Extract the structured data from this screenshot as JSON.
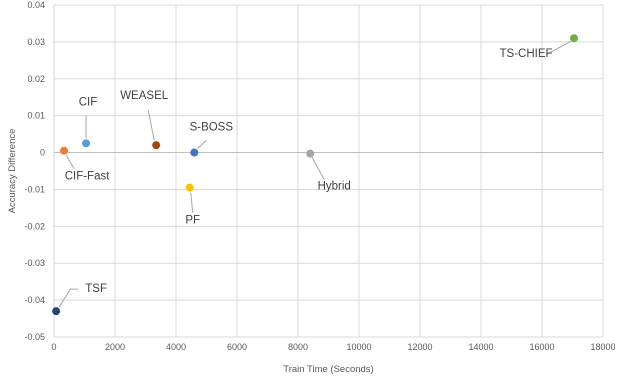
{
  "chart_data": {
    "type": "scatter",
    "xlabel": "Train Time (Seconds)",
    "ylabel": "Accuracy Difference",
    "xlim": [
      0,
      18000
    ],
    "ylim": [
      -0.05,
      0.04
    ],
    "x_ticks": [
      "0",
      "2000",
      "4000",
      "6000",
      "8000",
      "10000",
      "12000",
      "14000",
      "16000",
      "18000"
    ],
    "y_ticks": [
      "0.04",
      "0.03",
      "0.02",
      "0.01",
      "0",
      "-0.01",
      "-0.02",
      "-0.03",
      "-0.04",
      "-0.05"
    ],
    "grid": true,
    "legend": "none",
    "points": [
      {
        "label": "TS-CHIEF",
        "x": 17050,
        "y": 0.031,
        "color": "#70ad47"
      },
      {
        "label": "CIF",
        "x": 1050,
        "y": 0.0025,
        "color": "#5b9bd5"
      },
      {
        "label": "CIF-Fast",
        "x": 330,
        "y": 0.0005,
        "color": "#ed7d31"
      },
      {
        "label": "WEASEL",
        "x": 3350,
        "y": 0.002,
        "color": "#9e480e"
      },
      {
        "label": "S-BOSS",
        "x": 4600,
        "y": 0.0,
        "color": "#4472c4"
      },
      {
        "label": "Hybrid",
        "x": 8400,
        "y": -0.0003,
        "color": "#a5a5a5"
      },
      {
        "label": "PF",
        "x": 4450,
        "y": -0.0095,
        "color": "#ffc000"
      },
      {
        "label": "TSF",
        "x": 70,
        "y": -0.043,
        "color": "#264478"
      }
    ]
  }
}
